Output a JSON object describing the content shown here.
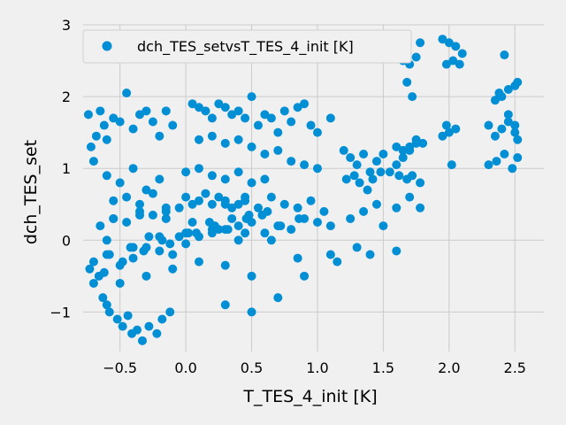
{
  "chart_data": {
    "type": "scatter",
    "title": "",
    "xlabel": "T_TES_4_init [K]",
    "ylabel": "dch_TES_set",
    "xlim": [
      -0.78,
      2.72
    ],
    "ylim": [
      -1.55,
      3.0
    ],
    "xticks": [
      -0.5,
      0.0,
      0.5,
      1.0,
      1.5,
      2.0,
      2.5
    ],
    "xtick_labels": [
      "−0.5",
      "0.0",
      "0.5",
      "1.0",
      "1.5",
      "2.0",
      "2.5"
    ],
    "yticks": [
      -1,
      0,
      1,
      2,
      3
    ],
    "ytick_labels": [
      "−1",
      "0",
      "1",
      "2",
      "3"
    ],
    "grid": true,
    "legend_position": "top-left",
    "colors": {
      "marker": "#008fd5",
      "background": "#f0f0f0",
      "grid": "#cbcbcb"
    },
    "series": [
      {
        "name": "dch_TES_setvsT_TES_4_init [K]",
        "x": [
          -0.74,
          -0.72,
          -0.7,
          -0.68,
          -0.65,
          -0.62,
          -0.6,
          -0.55,
          -0.5,
          -0.45,
          -0.4,
          -0.35,
          -0.3,
          -0.25,
          -0.2,
          -0.15,
          -0.1,
          -0.73,
          -0.7,
          -0.66,
          -0.63,
          -0.6,
          -0.58,
          -0.52,
          -0.48,
          -0.44,
          -0.41,
          -0.37,
          -0.33,
          -0.28,
          -0.22,
          -0.18,
          -0.12,
          0.05,
          0.1,
          0.15,
          0.2,
          0.25,
          0.3,
          0.35,
          0.4,
          0.45,
          0.5,
          0.55,
          0.6,
          0.65,
          0.7,
          0.75,
          0.8,
          0.85,
          0.9,
          0.95,
          1.0,
          0.1,
          0.2,
          0.3,
          0.4,
          0.5,
          0.6,
          0.7,
          0.8,
          0.9,
          1.0,
          1.1,
          1.2,
          1.25,
          1.3,
          1.35,
          1.4,
          1.45,
          1.5,
          1.6,
          1.65,
          1.7,
          1.75,
          1.8,
          1.22,
          1.28,
          1.32,
          1.38,
          1.42,
          1.48,
          1.62,
          1.68,
          1.72,
          1.78,
          1.25,
          1.35,
          1.45,
          1.6,
          1.7,
          1.78,
          1.1,
          1.15,
          1.3,
          1.4,
          1.5,
          1.6,
          1.65,
          1.7,
          1.75,
          1.78,
          1.72,
          1.68,
          1.95,
          2.0,
          2.05,
          2.1,
          1.98,
          2.03,
          2.08,
          1.95,
          2.0,
          2.05,
          1.98,
          2.02,
          2.3,
          2.35,
          2.4,
          2.45,
          2.5,
          2.52,
          2.35,
          2.4,
          2.45,
          2.5,
          2.52,
          2.38,
          2.42,
          2.3,
          2.36,
          2.42,
          2.48,
          2.52,
          -0.6,
          -0.5,
          -0.4,
          -0.3,
          -0.2,
          -0.55,
          -0.45,
          -0.35,
          -0.25,
          -0.15,
          0.0,
          0.1,
          0.2,
          0.3,
          0.4,
          0.5,
          0.6,
          -0.65,
          -0.55,
          -0.45,
          -0.35,
          -0.25,
          -0.15,
          -0.05,
          0.0,
          0.05,
          0.1,
          0.15,
          0.2,
          0.25,
          0.3,
          0.35,
          0.4,
          0.45,
          -0.5,
          -0.3,
          -0.1,
          0.1,
          0.3,
          0.5,
          0.6,
          0.7,
          0.8,
          0.9,
          1.0,
          1.1,
          -0.6,
          -0.4,
          -0.2,
          0.0,
          0.2,
          0.4,
          0.3,
          0.5,
          0.7,
          0.9,
          -0.7,
          -0.6,
          -0.5,
          -0.4,
          -0.3,
          -0.2,
          -0.1,
          0.0,
          0.1,
          0.2,
          0.3,
          0.4,
          0.5,
          -0.62,
          -0.48,
          -0.32,
          -0.18,
          -0.05,
          0.08,
          0.22,
          0.35,
          0.48,
          0.62,
          -0.58,
          -0.42,
          -0.28,
          -0.12,
          0.02,
          0.18,
          0.32,
          0.46,
          0.58,
          0.72,
          0.86,
          0.3,
          0.45,
          0.55,
          0.65,
          0.75,
          0.85,
          0.95,
          1.05,
          -0.55,
          -0.35,
          -0.15,
          0.05,
          0.25,
          0.45,
          0.65,
          0.85,
          1.55,
          1.6,
          1.65,
          1.7,
          1.75,
          2.45,
          2.5
        ],
        "y": [
          1.75,
          1.3,
          1.1,
          1.45,
          1.8,
          1.6,
          1.4,
          1.7,
          1.65,
          2.05,
          1.55,
          1.75,
          1.8,
          1.65,
          1.45,
          1.8,
          1.6,
          -0.4,
          -0.6,
          -0.5,
          -0.8,
          -0.9,
          -1.0,
          -1.1,
          -1.2,
          -1.05,
          -1.3,
          -1.25,
          -1.4,
          -1.2,
          -1.3,
          -1.1,
          -1.0,
          1.9,
          1.85,
          1.8,
          1.7,
          1.9,
          1.85,
          1.75,
          1.8,
          1.7,
          2.0,
          1.6,
          1.75,
          1.7,
          1.5,
          1.8,
          1.65,
          1.85,
          1.9,
          1.6,
          1.5,
          1.4,
          1.45,
          1.35,
          1.4,
          1.3,
          1.2,
          1.25,
          1.1,
          1.05,
          1.0,
          1.7,
          1.25,
          1.15,
          1.05,
          1.2,
          0.95,
          1.1,
          1.2,
          1.3,
          1.25,
          1.3,
          1.4,
          1.35,
          0.85,
          0.9,
          0.8,
          0.7,
          0.85,
          0.95,
          0.9,
          0.85,
          0.9,
          0.8,
          0.3,
          0.4,
          0.5,
          0.45,
          0.6,
          0.45,
          -0.2,
          -0.3,
          -0.1,
          -0.2,
          0.2,
          -0.15,
          2.5,
          2.45,
          2.55,
          2.75,
          2.0,
          2.2,
          2.8,
          2.75,
          2.7,
          2.6,
          2.45,
          2.5,
          2.45,
          1.45,
          1.5,
          1.55,
          1.6,
          1.05,
          1.6,
          1.45,
          1.55,
          1.65,
          1.5,
          1.4,
          1.95,
          2.0,
          2.1,
          2.15,
          2.2,
          2.05,
          2.58,
          1.05,
          1.1,
          1.2,
          1.0,
          1.15,
          0.9,
          0.8,
          1.0,
          0.7,
          0.85,
          0.55,
          0.6,
          0.5,
          0.65,
          0.45,
          0.95,
          1.0,
          0.9,
          0.85,
          0.95,
          0.8,
          0.85,
          0.2,
          0.3,
          0.25,
          0.4,
          0.35,
          0.3,
          0.45,
          0.6,
          0.5,
          0.55,
          0.65,
          0.5,
          0.6,
          0.55,
          0.45,
          0.5,
          0.6,
          -0.6,
          -0.5,
          -0.4,
          -0.3,
          -0.35,
          -0.5,
          0.1,
          0.2,
          0.15,
          0.3,
          0.25,
          0.2,
          0.0,
          -0.1,
          0.05,
          0.1,
          0.15,
          0.0,
          -0.9,
          -1.0,
          -0.8,
          -0.5,
          -0.3,
          -0.2,
          -0.35,
          -0.25,
          -0.1,
          -0.15,
          -0.2,
          -0.05,
          0.05,
          0.1,
          0.15,
          0.2,
          0.25,
          -0.45,
          -0.3,
          -0.15,
          0.0,
          0.05,
          0.1,
          0.2,
          0.3,
          0.35,
          0.4,
          -0.2,
          -0.1,
          0.05,
          -0.05,
          0.1,
          0.25,
          0.15,
          0.3,
          0.35,
          0.2,
          0.3,
          0.5,
          0.55,
          0.45,
          0.6,
          0.5,
          0.45,
          0.55,
          0.4,
          0.3,
          0.35,
          0.4,
          0.25,
          0.15,
          0.1,
          0.0,
          -0.25,
          0.95,
          1.05,
          1.15,
          1.25,
          1.35,
          1.75,
          1.6
        ]
      }
    ]
  }
}
